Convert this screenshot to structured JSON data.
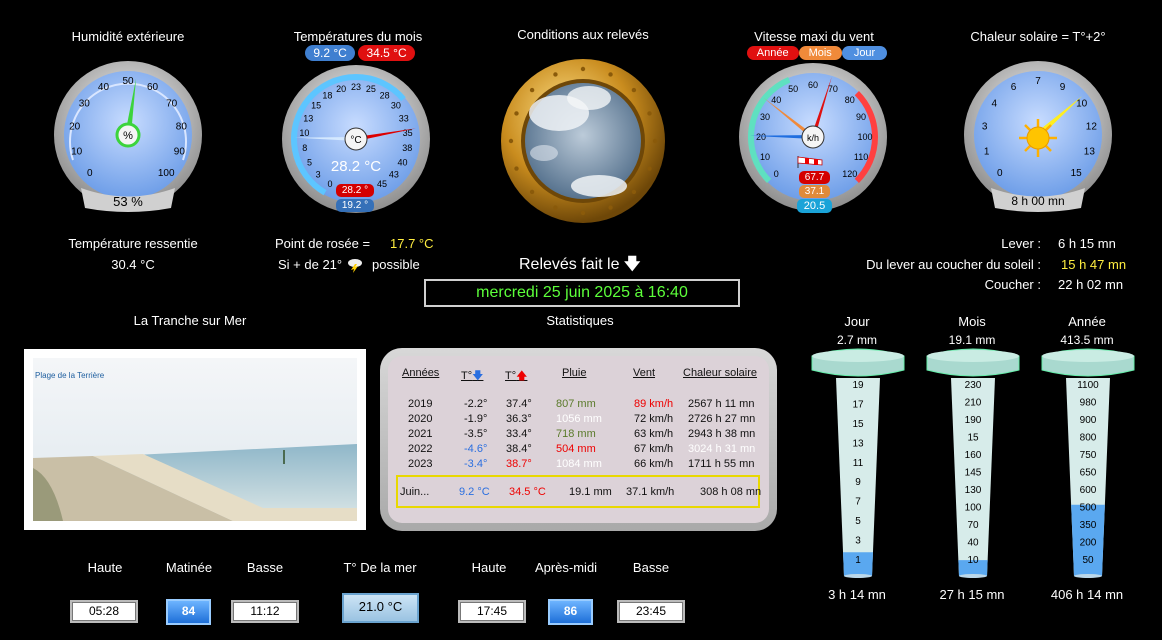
{
  "gauges": {
    "humidity": {
      "title": "Humidité extérieure",
      "value": 53,
      "value_label": "53 %",
      "unit": "%",
      "ticks": [
        "0",
        "10",
        "20",
        "30",
        "40",
        "50",
        "60",
        "70",
        "80",
        "90",
        "100"
      ]
    },
    "temperature": {
      "title": "Températures du mois",
      "min_badge": "9.2 °C",
      "max_badge": "34.5 °C",
      "center": "28.2 °C",
      "unit": "°C",
      "high": "28.2 °",
      "low": "19.2 °",
      "current": 28.2,
      "min": 9.2,
      "max": 34.5,
      "ticks": [
        "0",
        "3",
        "5",
        "8",
        "10",
        "13",
        "15",
        "18",
        "20",
        "23",
        "25",
        "28",
        "30",
        "33",
        "35",
        "38",
        "40",
        "43",
        "45"
      ]
    },
    "conditions": {
      "title": "Conditions aux relevés"
    },
    "wind": {
      "title": "Vitesse maxi du vent",
      "legend": [
        "Année",
        "Mois",
        "Jour"
      ],
      "unit": "k/h",
      "ticks": [
        "0",
        "10",
        "20",
        "30",
        "40",
        "50",
        "60",
        "70",
        "80",
        "90",
        "100",
        "110",
        "120"
      ],
      "year": 67.7,
      "month": 37.1,
      "day": 20.5,
      "year_label": "67.7",
      "month_label": "37.1",
      "day_label": "20.5"
    },
    "solar": {
      "title": "Chaleur solaire = T°+2°",
      "ticks": [
        "0",
        "1",
        "3",
        "4",
        "6",
        "7",
        "9",
        "10",
        "12",
        "13",
        "15"
      ],
      "value": 10.2,
      "value_label": "8 h 00 mn"
    }
  },
  "feel": {
    "label": "Température ressentie",
    "value": "30.4 °C"
  },
  "dew": {
    "label": "Point de rosée  =",
    "value": "17.7 °C",
    "storm_left": "Si + de 21°",
    "storm_right": "possible"
  },
  "sun": {
    "rise_label": "Lever :",
    "rise": "6 h 15 mn",
    "day_label": "Du lever au coucher du soleil :",
    "day": "15 h 47 mn",
    "set_label": "Coucher :",
    "set": "22 h 02 mn"
  },
  "reading": {
    "label": "Relevés fait le",
    "datetime": "mercredi 25 juin 2025 à 16:40"
  },
  "webcam": {
    "title": "La Tranche sur Mer",
    "caption": "Plage de la Terrière"
  },
  "stats": {
    "title": "Statistiques",
    "headers": [
      "Années",
      "T°",
      "T°",
      "Pluie",
      "Vent",
      "Chaleur solaire"
    ],
    "rows": [
      {
        "year": "2019",
        "tmin": "-2.2°",
        "tmax": "37.4°",
        "rain": "807 mm",
        "wind": "89 km/h",
        "solar": "2567 h 11 mn",
        "tmin_c": "#111",
        "tmax_c": "#111",
        "rain_c": "#5a7a2a",
        "wind_c": "#e00",
        "solar_c": "#111"
      },
      {
        "year": "2020",
        "tmin": "-1.9°",
        "tmax": "36.3°",
        "rain": "1056 mm",
        "wind": "72 km/h",
        "solar": "2726 h 27 mn",
        "tmin_c": "#111",
        "tmax_c": "#111",
        "rain_c": "#fff",
        "wind_c": "#111",
        "solar_c": "#111"
      },
      {
        "year": "2021",
        "tmin": "-3.5°",
        "tmax": "33.4°",
        "rain": "718 mm",
        "wind": "63 km/h",
        "solar": "2943 h 38 mn",
        "tmin_c": "#111",
        "tmax_c": "#111",
        "rain_c": "#5a7a2a",
        "wind_c": "#111",
        "solar_c": "#111"
      },
      {
        "year": "2022",
        "tmin": "-4.6°",
        "tmax": "38.4°",
        "rain": "504 mm",
        "wind": "67 km/h",
        "solar": "3024 h 31 mn",
        "tmin_c": "#2a6ee0",
        "tmax_c": "#111",
        "rain_c": "#e00",
        "wind_c": "#111",
        "solar_c": "#fff"
      },
      {
        "year": "2023",
        "tmin": "-3.4°",
        "tmax": "38.7°",
        "rain": "1084 mm",
        "wind": "66 km/h",
        "solar": "1711 h 55 mn",
        "tmin_c": "#2a6ee0",
        "tmax_c": "#e00",
        "rain_c": "#fff",
        "wind_c": "#111",
        "solar_c": "#111"
      }
    ],
    "current": {
      "label": "Juin...",
      "tmin": "9.2 °C",
      "tmax": "34.5 °C",
      "rain": "19.1 mm",
      "wind": "37.1 km/h",
      "solar": "308 h 08 mn"
    }
  },
  "rain": {
    "day": {
      "title": "Jour",
      "value": "2.7 mm",
      "total": "3 h 14  mn",
      "ticks": [
        "19",
        "17",
        "15",
        "13",
        "11",
        "9",
        "7",
        "5",
        "3",
        "1"
      ],
      "fill": 0.12
    },
    "month": {
      "title": "Mois",
      "value": "19.1 mm",
      "total": "27 h 15 mn",
      "ticks": [
        "230",
        "210",
        "190",
        "15",
        "160",
        "145",
        "130",
        "100",
        "70",
        "40",
        "10"
      ],
      "fill": 0.08
    },
    "year": {
      "title": "Année",
      "value": "413.5 mm",
      "total": "406 h 14 mn",
      "ticks": [
        "1100",
        "980",
        "900",
        "800",
        "750",
        "650",
        "600",
        "500",
        "350",
        "200",
        "50"
      ],
      "fill": 0.36
    }
  },
  "tides": {
    "morning": {
      "title": "Matinée",
      "high_label": "Haute",
      "low_label": "Basse",
      "high": "05:28",
      "coef": "84",
      "low": "11:12"
    },
    "sea": {
      "title": "T° De la mer",
      "value": "21.0 °C"
    },
    "afternoon": {
      "title": "Après-midi",
      "high_label": "Haute",
      "low_label": "Basse",
      "high": "17:45",
      "coef": "86",
      "low": "23:45"
    }
  }
}
